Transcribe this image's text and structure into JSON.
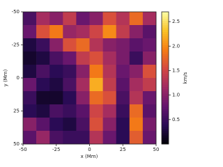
{
  "chart_data": {
    "type": "heatmap",
    "colormap": "inferno",
    "xlabel": "x (Mm)",
    "ylabel": "y (Mm)",
    "colorbar_label": "km/s",
    "x": [
      -45,
      -35,
      -25,
      -15,
      -5,
      5,
      15,
      25,
      35,
      45
    ],
    "y": [
      -45,
      -35,
      -25,
      -15,
      -5,
      5,
      15,
      25,
      35,
      45
    ],
    "z": [
      [
        0.6,
        1.2,
        1.0,
        1.4,
        0.8,
        1.0,
        1.6,
        1.3,
        1.8,
        1.2
      ],
      [
        0.8,
        1.6,
        1.9,
        1.1,
        1.2,
        1.5,
        2.0,
        1.4,
        1.0,
        0.7
      ],
      [
        0.3,
        0.5,
        1.0,
        1.6,
        1.8,
        1.3,
        1.0,
        0.9,
        0.7,
        0.8
      ],
      [
        0.2,
        0.3,
        0.6,
        0.8,
        1.4,
        1.6,
        1.2,
        0.9,
        0.5,
        1.0
      ],
      [
        0.3,
        0.6,
        0.4,
        0.5,
        1.0,
        1.9,
        1.3,
        0.8,
        1.0,
        1.6
      ],
      [
        0.8,
        0.4,
        0.3,
        0.6,
        1.2,
        2.2,
        1.4,
        0.7,
        1.2,
        1.4
      ],
      [
        0.5,
        0.2,
        0.2,
        0.4,
        1.0,
        1.8,
        1.6,
        0.6,
        1.3,
        0.8
      ],
      [
        0.4,
        0.3,
        0.6,
        0.5,
        0.7,
        1.5,
        1.2,
        0.5,
        1.8,
        0.7
      ],
      [
        1.0,
        0.7,
        0.4,
        0.3,
        0.6,
        1.6,
        1.0,
        0.4,
        1.9,
        0.9
      ],
      [
        0.7,
        1.1,
        0.6,
        0.5,
        0.5,
        1.3,
        0.8,
        0.4,
        1.7,
        0.8
      ]
    ],
    "xlim": [
      -50,
      50
    ],
    "ylim": [
      -50,
      50
    ],
    "xticks": [
      -50,
      -25,
      0,
      25,
      50
    ],
    "yticks": [
      -50,
      -25,
      0,
      25,
      50
    ],
    "clim": [
      0,
      2.7
    ],
    "cticks": [
      0.5,
      1.0,
      1.5,
      2.0,
      2.5
    ]
  }
}
